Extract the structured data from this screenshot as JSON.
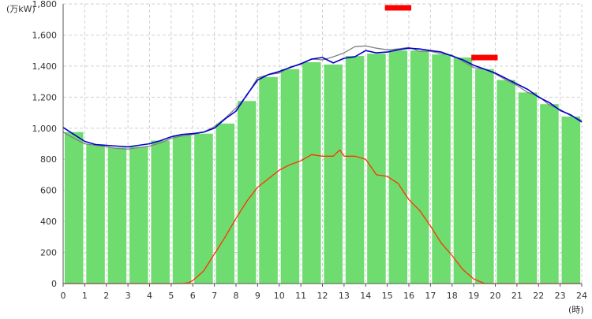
{
  "chart_data": {
    "type": "bar+line",
    "unit_label": "(万kW)",
    "x_unit_label": "(時)",
    "xlim": [
      0,
      24
    ],
    "ylim": [
      0,
      1800
    ],
    "y_ticks": [
      "0",
      "200",
      "400",
      "600",
      "800",
      "1,000",
      "1,200",
      "1,400",
      "1,600",
      "1,800"
    ],
    "x_ticks": [
      "0",
      "1",
      "2",
      "3",
      "4",
      "5",
      "6",
      "7",
      "8",
      "9",
      "10",
      "11",
      "12",
      "13",
      "14",
      "15",
      "16",
      "17",
      "18",
      "19",
      "20",
      "21",
      "22",
      "23",
      "24"
    ],
    "grid": true,
    "bars": {
      "color": "#6edc6e",
      "categories": [
        0,
        1,
        2,
        3,
        4,
        5,
        6,
        7,
        8,
        9,
        10,
        11,
        12,
        13,
        14,
        15,
        16,
        17,
        18,
        19,
        20,
        21,
        22,
        23
      ],
      "values": [
        975,
        895,
        875,
        880,
        920,
        955,
        965,
        1030,
        1175,
        1330,
        1380,
        1425,
        1410,
        1465,
        1480,
        1500,
        1500,
        1475,
        1455,
        1380,
        1310,
        1230,
        1155,
        1075
      ]
    },
    "lines": [
      {
        "color": "#808080",
        "x": [
          0,
          0.5,
          1,
          1.5,
          2,
          2.5,
          3,
          3.5,
          4,
          4.5,
          5,
          5.5,
          6,
          6.5,
          7,
          7.5,
          8,
          8.5,
          9,
          9.5,
          10,
          10.5,
          11,
          11.5,
          12,
          12.5,
          13,
          13.5,
          14,
          14.5,
          15,
          15.5,
          16,
          16.5,
          17,
          17.5,
          18,
          18.5,
          19,
          19.5,
          20,
          20.5,
          21,
          21.5,
          22,
          22.5,
          23,
          23.5,
          24
        ],
        "values": [
          975,
          935,
          900,
          890,
          880,
          870,
          865,
          875,
          885,
          905,
          935,
          950,
          960,
          975,
          1010,
          1065,
          1130,
          1210,
          1325,
          1345,
          1355,
          1395,
          1410,
          1445,
          1440,
          1460,
          1485,
          1525,
          1530,
          1515,
          1505,
          1510,
          1520,
          1495,
          1495,
          1480,
          1470,
          1430,
          1390,
          1380,
          1350,
          1310,
          1275,
          1230,
          1205,
          1150,
          1120,
          1080,
          1050
        ]
      },
      {
        "color": "#0000cc",
        "x": [
          0,
          0.5,
          1,
          1.5,
          2,
          2.5,
          3,
          3.5,
          4,
          4.5,
          5,
          5.5,
          6,
          6.5,
          7,
          7.5,
          8,
          8.5,
          9,
          9.5,
          10,
          10.5,
          11,
          11.5,
          12,
          12.5,
          13,
          13.5,
          14,
          14.5,
          15,
          15.5,
          16,
          16.5,
          17,
          17.5,
          18,
          18.5,
          19,
          19.5,
          20,
          20.5,
          21,
          21.5,
          22,
          22.5,
          23,
          23.5,
          24
        ],
        "values": [
          1005,
          960,
          915,
          895,
          890,
          885,
          880,
          890,
          900,
          920,
          945,
          960,
          965,
          975,
          1000,
          1060,
          1110,
          1215,
          1310,
          1345,
          1365,
          1390,
          1415,
          1445,
          1455,
          1420,
          1450,
          1460,
          1500,
          1485,
          1490,
          1505,
          1515,
          1510,
          1500,
          1490,
          1465,
          1440,
          1405,
          1380,
          1355,
          1320,
          1285,
          1250,
          1200,
          1165,
          1115,
          1085,
          1040
        ]
      },
      {
        "color": "#ff3300",
        "x": [
          0,
          1,
          2,
          3,
          4,
          5,
          5.5,
          5.8,
          6,
          6.5,
          7,
          7.5,
          8,
          8.5,
          9,
          9.5,
          10,
          10.5,
          11,
          11.5,
          12,
          12.5,
          12.8,
          13,
          13.5,
          14,
          14.5,
          15,
          15.5,
          16,
          16.5,
          17,
          17.5,
          18,
          18.5,
          19,
          19.5,
          20,
          21,
          22,
          23,
          24
        ],
        "values": [
          0,
          0,
          0,
          0,
          0,
          0,
          0,
          5,
          20,
          80,
          190,
          300,
          420,
          530,
          620,
          675,
          730,
          765,
          790,
          830,
          820,
          820,
          860,
          820,
          820,
          800,
          700,
          690,
          645,
          540,
          470,
          370,
          260,
          180,
          90,
          30,
          0,
          0,
          0,
          0,
          0,
          0
        ]
      }
    ],
    "markers": [
      {
        "color": "#ff0000",
        "x_start": 15,
        "x_end": 16,
        "value": 1775
      },
      {
        "color": "#ff0000",
        "x_start": 19,
        "x_end": 20,
        "value": 1455
      }
    ]
  }
}
